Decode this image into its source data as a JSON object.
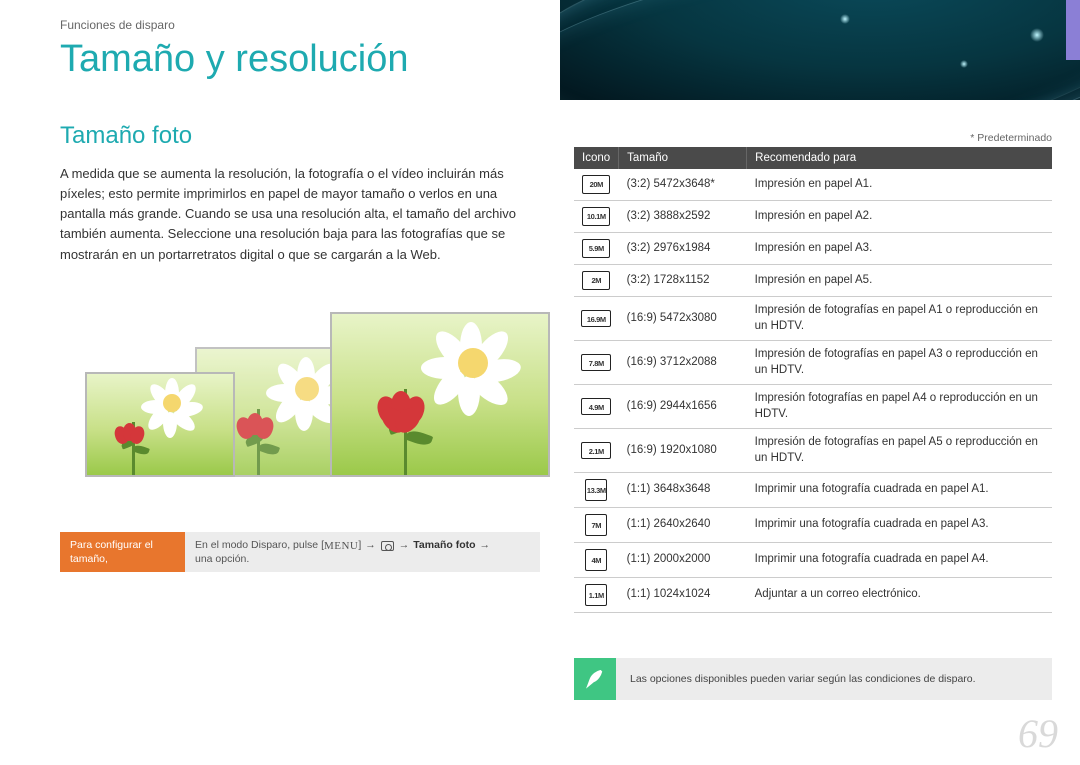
{
  "breadcrumb": "Funciones de disparo",
  "title": "Tamaño y resolución",
  "subtitle": "Tamaño foto",
  "body": "A medida que se aumenta la resolución, la fotografía o el vídeo incluirán más píxeles; esto permite imprimirlos en papel de mayor tamaño o verlos en una pantalla más grande. Cuando se usa una resolución alta, el tamaño del archivo también aumenta. Seleccione una resolución baja para las fotografías que se mostrarán en un portarretratos digital o que se cargarán a la Web.",
  "config": {
    "left": "Para configurar el tamaño,",
    "right_prefix": "En el modo Disparo, pulse [",
    "menu_label": "MENU",
    "right_mid": "] ",
    "arrow": "→",
    "bold": "Tamaño foto",
    "right_suffix": "una opción."
  },
  "default_note": "* Predeterminado",
  "table": {
    "headers": {
      "icon": "Icono",
      "size": "Tamaño",
      "rec": "Recomendado para"
    },
    "rows": [
      {
        "icon_text": "20M",
        "icon_class": "",
        "size": "(3:2) 5472x3648*",
        "rec": "Impresión en papel A1."
      },
      {
        "icon_text": "10.1M",
        "icon_class": "",
        "size": "(3:2) 3888x2592",
        "rec": "Impresión en papel A2."
      },
      {
        "icon_text": "5.9M",
        "icon_class": "",
        "size": "(3:2) 2976x1984",
        "rec": "Impresión en papel A3."
      },
      {
        "icon_text": "2M",
        "icon_class": "",
        "size": "(3:2) 1728x1152",
        "rec": "Impresión en papel A5."
      },
      {
        "icon_text": "16.9M",
        "icon_class": "wide",
        "size": "(16:9) 5472x3080",
        "rec": "Impresión de fotografías en papel A1 o reproducción en un HDTV."
      },
      {
        "icon_text": "7.8M",
        "icon_class": "wide",
        "size": "(16:9) 3712x2088",
        "rec": "Impresión de fotografías en papel A3 o reproducción en un HDTV."
      },
      {
        "icon_text": "4.9M",
        "icon_class": "wide",
        "size": "(16:9) 2944x1656",
        "rec": "Impresión fotografías en papel A4 o reproducción en un HDTV."
      },
      {
        "icon_text": "2.1M",
        "icon_class": "wide",
        "size": "(16:9) 1920x1080",
        "rec": "Impresión de fotografías en papel A5 o reproducción en un HDTV."
      },
      {
        "icon_text": "13.3M",
        "icon_class": "square",
        "size": "(1:1) 3648x3648",
        "rec": "Imprimir una fotografía cuadrada en papel A1."
      },
      {
        "icon_text": "7M",
        "icon_class": "square",
        "size": "(1:1) 2640x2640",
        "rec": "Imprimir una fotografía cuadrada en papel A3."
      },
      {
        "icon_text": "4M",
        "icon_class": "square",
        "size": "(1:1) 2000x2000",
        "rec": "Imprimir una fotografía cuadrada en papel A4."
      },
      {
        "icon_text": "1.1M",
        "icon_class": "square",
        "size": "(1:1) 1024x1024",
        "rec": "Adjuntar a un correo electrónico."
      }
    ]
  },
  "note": "Las opciones disponibles pueden variar según las condiciones de disparo.",
  "page_number": "69",
  "colors": {
    "accent": "#1eaab0",
    "config_bg": "#e8762d",
    "note_icon_bg": "#3fc683",
    "table_header_bg": "#4a4a4a"
  }
}
